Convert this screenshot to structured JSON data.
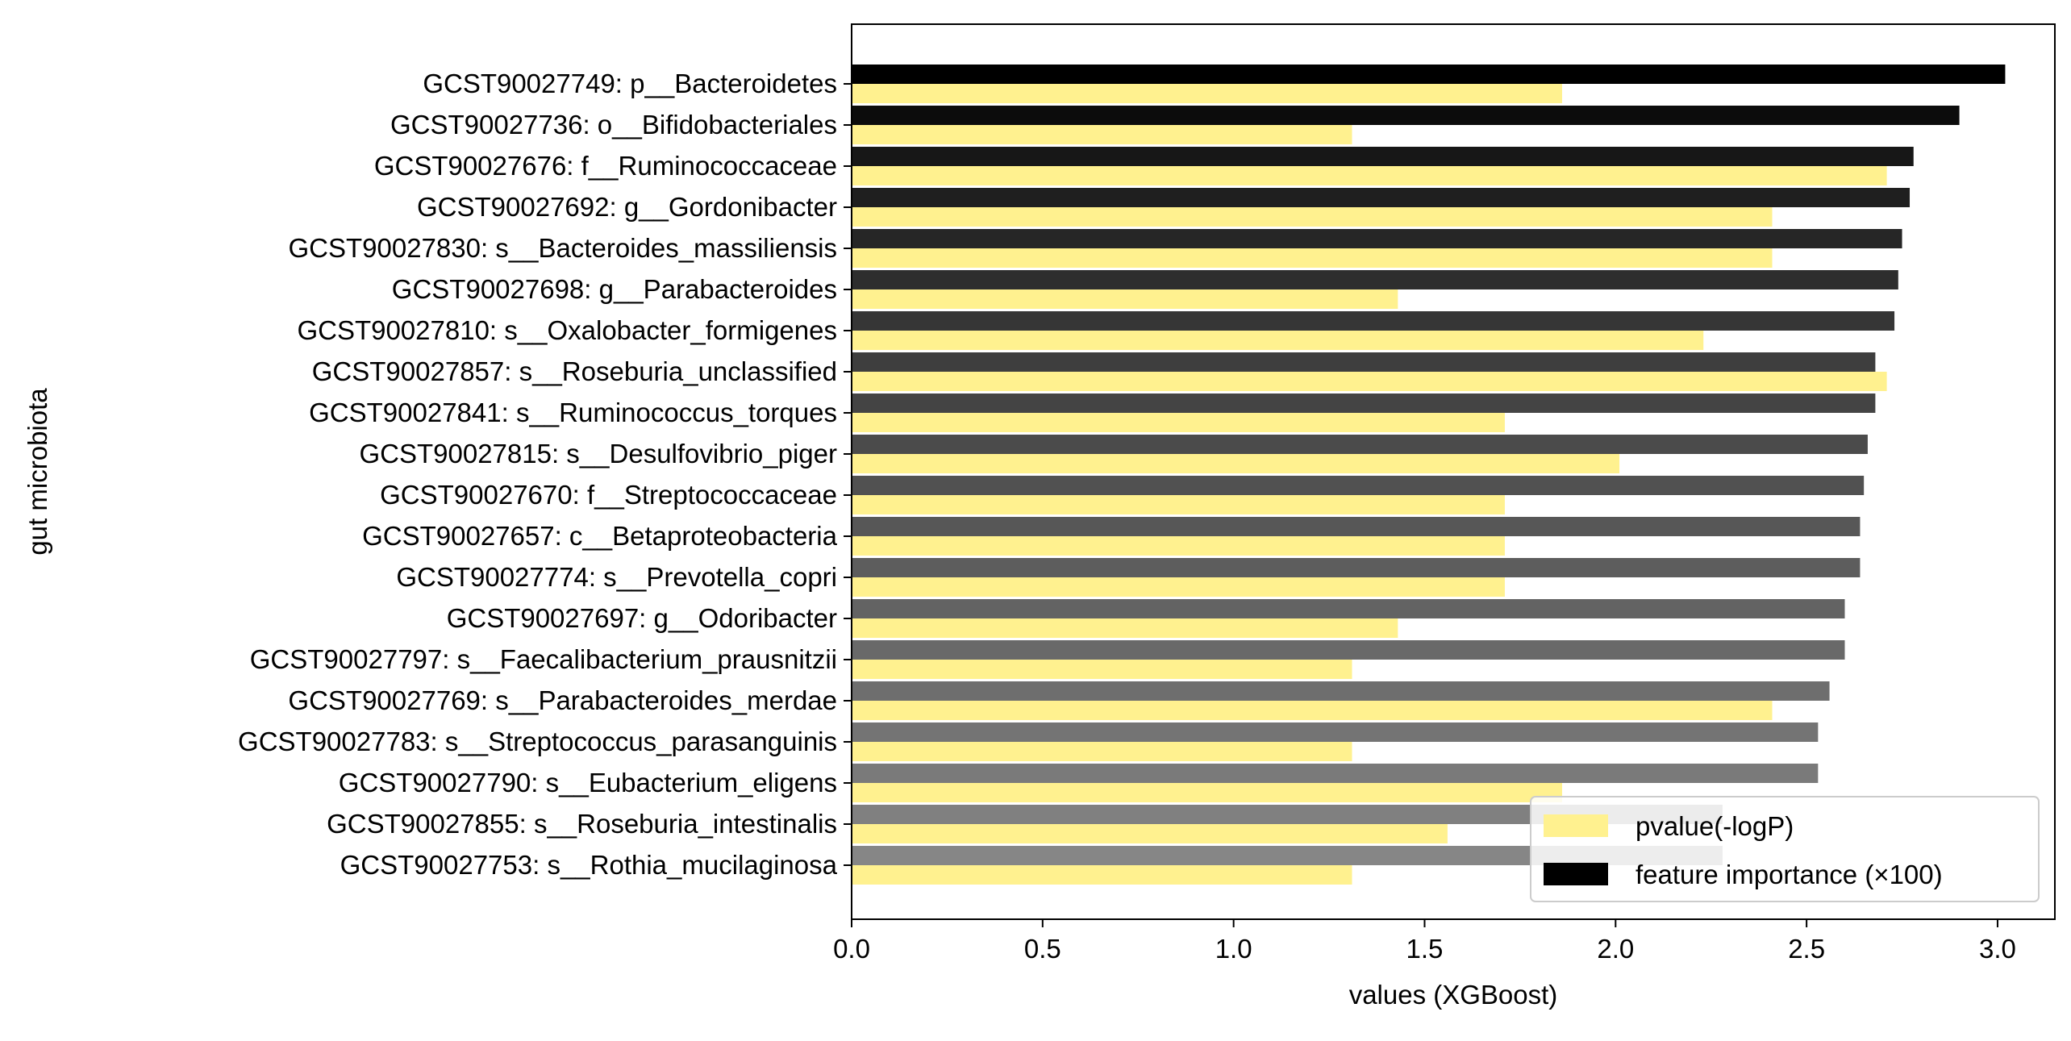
{
  "chart_data": {
    "type": "bar",
    "orientation": "horizontal",
    "xlabel": "values (XGBoost)",
    "ylabel": "gut microbiota",
    "xlim": [
      0.0,
      3.15
    ],
    "xticks": [
      "0.0",
      "0.5",
      "1.0",
      "1.5",
      "2.0",
      "2.5",
      "3.0"
    ],
    "grid": false,
    "legend_position": "lower-right",
    "categories": [
      "GCST90027749: p__Bacteroidetes",
      "GCST90027736: o__Bifidobacteriales",
      "GCST90027676: f__Ruminococcaceae",
      "GCST90027692: g__Gordonibacter",
      "GCST90027830: s__Bacteroides_massiliensis",
      "GCST90027698: g__Parabacteroides",
      "GCST90027810: s__Oxalobacter_formigenes",
      "GCST90027857: s__Roseburia_unclassified",
      "GCST90027841: s__Ruminococcus_torques",
      "GCST90027815: s__Desulfovibrio_piger",
      "GCST90027670: f__Streptococcaceae",
      "GCST90027657: c__Betaproteobacteria",
      "GCST90027774: s__Prevotella_copri",
      "GCST90027697: g__Odoribacter",
      "GCST90027797: s__Faecalibacterium_prausnitzii",
      "GCST90027769: s__Parabacteroides_merdae",
      "GCST90027783: s__Streptococcus_parasanguinis",
      "GCST90027790: s__Eubacterium_eligens",
      "GCST90027855: s__Roseburia_intestinalis",
      "GCST90027753: s__Rothia_mucilaginosa"
    ],
    "series": [
      {
        "name": "pvalue(-logP)",
        "color": "#fff18f",
        "values": [
          1.86,
          1.31,
          2.71,
          2.41,
          2.41,
          1.43,
          2.23,
          2.71,
          1.71,
          2.01,
          1.71,
          1.71,
          1.71,
          1.43,
          1.31,
          2.41,
          1.31,
          1.86,
          1.56,
          1.31
        ]
      },
      {
        "name": "feature importance (×100)",
        "color": "#000000",
        "values": [
          3.02,
          2.9,
          2.78,
          2.77,
          2.75,
          2.74,
          2.73,
          2.68,
          2.68,
          2.66,
          2.65,
          2.64,
          2.64,
          2.6,
          2.6,
          2.56,
          2.53,
          2.53,
          2.28,
          2.28
        ],
        "bar_colors": [
          "#000000",
          "#0c0c0c",
          "#171717",
          "#1f1f1f",
          "#262626",
          "#2e2e2e",
          "#363636",
          "#3e3e3e",
          "#444444",
          "#4b4b4b",
          "#515151",
          "#575757",
          "#5d5d5d",
          "#636363",
          "#696969",
          "#6e6e6e",
          "#747474",
          "#7a7a7a",
          "#808080",
          "#868686"
        ]
      }
    ]
  }
}
